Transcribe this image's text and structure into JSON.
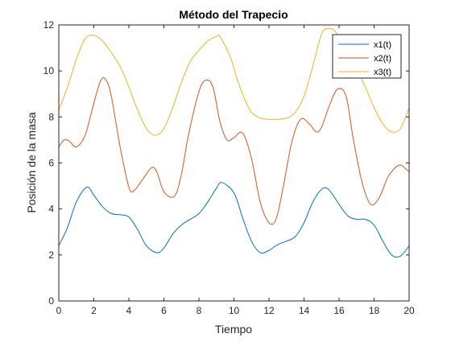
{
  "chart_data": {
    "type": "line",
    "title": "Método del Trapecio",
    "xlabel": "Tiempo",
    "ylabel": "Posición de la masa",
    "xlim": [
      0,
      20
    ],
    "ylim": [
      0,
      12
    ],
    "xticks": [
      0,
      2,
      4,
      6,
      8,
      10,
      12,
      14,
      16,
      18,
      20
    ],
    "yticks": [
      0,
      2,
      4,
      6,
      8,
      10,
      12
    ],
    "grid": false,
    "legend_position": "top-right",
    "series": [
      {
        "name": "x1(t)",
        "color": "#0072bd",
        "x": [
          0,
          0.5,
          1,
          1.6,
          2,
          2.5,
          3,
          3.5,
          4,
          4.5,
          5,
          5.6,
          6,
          6.5,
          7,
          7.5,
          8,
          8.5,
          9,
          9.3,
          10,
          10.5,
          11,
          11.5,
          12,
          12.5,
          13,
          13.5,
          14,
          14.5,
          15,
          15.4,
          16,
          16.5,
          17,
          17.5,
          18,
          18.5,
          19,
          19.5,
          20
        ],
        "y": [
          2.4,
          3.2,
          4.3,
          4.95,
          4.6,
          4.1,
          3.8,
          3.75,
          3.65,
          3.1,
          2.4,
          2.1,
          2.3,
          2.9,
          3.3,
          3.55,
          3.8,
          4.3,
          4.9,
          5.15,
          4.7,
          3.6,
          2.6,
          2.1,
          2.2,
          2.45,
          2.6,
          2.8,
          3.4,
          4.3,
          4.85,
          4.85,
          4.2,
          3.7,
          3.55,
          3.55,
          3.3,
          2.6,
          2.0,
          1.95,
          2.4
        ]
      },
      {
        "name": "x2(t)",
        "color": "#d95319",
        "x": [
          0,
          0.3,
          0.6,
          1,
          1.5,
          2,
          2.4,
          2.7,
          3,
          3.5,
          4,
          4.3,
          4.8,
          5.3,
          5.6,
          6,
          6.6,
          7,
          7.4,
          8,
          8.4,
          8.8,
          9.2,
          9.6,
          10,
          10.5,
          11,
          11.5,
          12,
          12.4,
          12.8,
          13.3,
          13.8,
          14.3,
          14.7,
          15,
          15.4,
          15.9,
          16.4,
          16.8,
          17.3,
          17.8,
          18.3,
          18.8,
          19.4,
          19.8,
          20
        ],
        "y": [
          6.7,
          7.0,
          6.95,
          6.7,
          7.2,
          8.6,
          9.6,
          9.6,
          8.9,
          6.7,
          4.95,
          4.8,
          5.3,
          5.8,
          5.6,
          4.75,
          4.55,
          5.5,
          7.2,
          9.1,
          9.6,
          9.3,
          7.8,
          7.0,
          7.1,
          7.3,
          6.2,
          4.3,
          3.4,
          3.55,
          4.9,
          6.9,
          7.9,
          7.7,
          7.35,
          7.55,
          8.4,
          9.2,
          8.9,
          7.1,
          5.2,
          4.2,
          4.5,
          5.4,
          5.9,
          5.75,
          5.6
        ]
      },
      {
        "name": "x3(t)",
        "color": "#edb120",
        "x": [
          0,
          0.5,
          1,
          1.5,
          2,
          2.5,
          3,
          3.5,
          4,
          4.5,
          5,
          5.5,
          6,
          6.5,
          7,
          7.5,
          8,
          8.5,
          9,
          9.2,
          9.8,
          10.2,
          10.6,
          11,
          11.5,
          12,
          12.5,
          13,
          13.5,
          14,
          14.5,
          15,
          15.4,
          15.8,
          16.3,
          16.8,
          17.5,
          18,
          18.5,
          19,
          19.5,
          20
        ],
        "y": [
          8.3,
          9.3,
          10.5,
          11.4,
          11.55,
          11.3,
          10.8,
          10.2,
          9.3,
          8.3,
          7.5,
          7.2,
          7.5,
          8.4,
          9.5,
          10.4,
          10.9,
          11.3,
          11.5,
          11.5,
          10.6,
          9.6,
          8.8,
          8.2,
          7.95,
          7.9,
          7.9,
          7.95,
          8.2,
          8.9,
          10.2,
          11.6,
          11.85,
          11.7,
          11.0,
          10.4,
          9.3,
          8.4,
          7.7,
          7.35,
          7.5,
          8.4
        ]
      }
    ]
  }
}
